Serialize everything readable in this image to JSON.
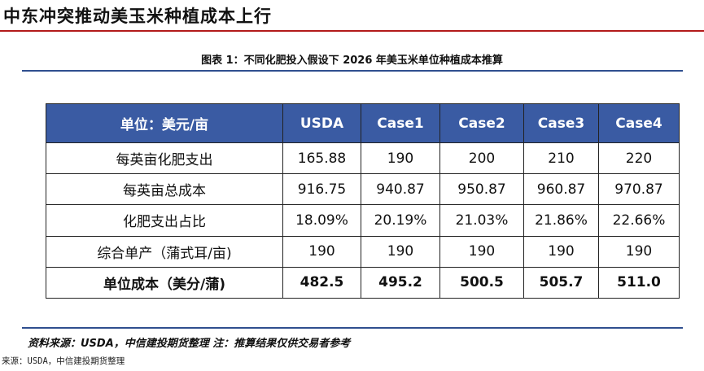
{
  "page_title": "中东冲突推动美玉米种植成本上行",
  "figure_caption": "图表 1：不同化肥投入假设下 2026 年美玉米单位种植成本推算",
  "table": {
    "headers": [
      "单位：美元/亩",
      "USDA",
      "Case1",
      "Case2",
      "Case3",
      "Case4"
    ],
    "rows": [
      {
        "label": "每英亩化肥支出",
        "values": [
          "165.88",
          "190",
          "200",
          "210",
          "220"
        ]
      },
      {
        "label": "每英亩总成本",
        "values": [
          "916.75",
          "940.87",
          "950.87",
          "960.87",
          "970.87"
        ]
      },
      {
        "label": "化肥支出占比",
        "values": [
          "18.09%",
          "20.19%",
          "21.03%",
          "21.86%",
          "22.66%"
        ]
      },
      {
        "label": "综合单产（蒲式耳/亩)",
        "values": [
          "190",
          "190",
          "190",
          "190",
          "190"
        ]
      },
      {
        "label": "单位成本（美分/蒲)",
        "values": [
          "482.5",
          "495.2",
          "500.5",
          "505.7",
          "511.0"
        ]
      }
    ]
  },
  "source_note": "资料来源：USDA，中信建投期货整理 注：推算结果仅供交易者参考",
  "footer_source": "来源：USDA，中信建投期货整理",
  "colors": {
    "header_bg": "#3a5ba3",
    "title_rule": "#b31b1b",
    "section_rule": "#2f4f8f"
  }
}
